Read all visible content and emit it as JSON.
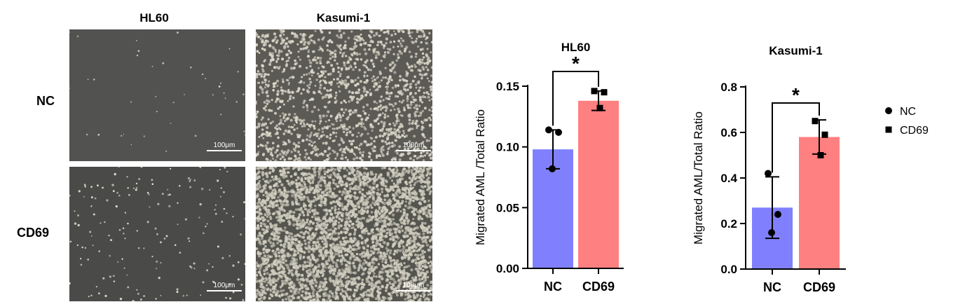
{
  "micrographs": {
    "columns": [
      "HL60",
      "Kasumi-1"
    ],
    "rows": [
      "NC",
      "CD69"
    ],
    "scale_bar": "100μm"
  },
  "colors": {
    "nc": "#8080ff",
    "cd69": "#ff8080",
    "micro_dark": "#4e4e4c",
    "micro_bright": "#8c8a84"
  },
  "chart_data": [
    {
      "type": "bar",
      "title": "HL60",
      "ylabel": "Migrated AML /Total Ratio",
      "xlabel": "",
      "categories": [
        "NC",
        "CD69"
      ],
      "values": [
        0.098,
        0.138
      ],
      "error": [
        0.016,
        0.008
      ],
      "points": [
        [
          0.114,
          0.112,
          0.082
        ],
        [
          0.146,
          0.145,
          0.132
        ]
      ],
      "ylim": [
        0,
        0.15
      ],
      "yticks": [
        "0.00",
        "0.05",
        "0.10",
        "0.15"
      ],
      "significance": "*",
      "legend": null
    },
    {
      "type": "bar",
      "title": "Kasumi-1",
      "ylabel": "Migrated AML/Total Ratio",
      "xlabel": "",
      "categories": [
        "NC",
        "CD69"
      ],
      "values": [
        0.27,
        0.58
      ],
      "error": [
        0.135,
        0.075
      ],
      "points": [
        [
          0.42,
          0.24,
          0.16
        ],
        [
          0.65,
          0.59,
          0.5
        ]
      ],
      "ylim": [
        0,
        0.8
      ],
      "yticks": [
        "0.0",
        "0.2",
        "0.4",
        "0.6",
        "0.8"
      ],
      "significance": "*",
      "legend": {
        "position": "right",
        "entries": [
          "NC",
          "CD69"
        ]
      }
    }
  ]
}
